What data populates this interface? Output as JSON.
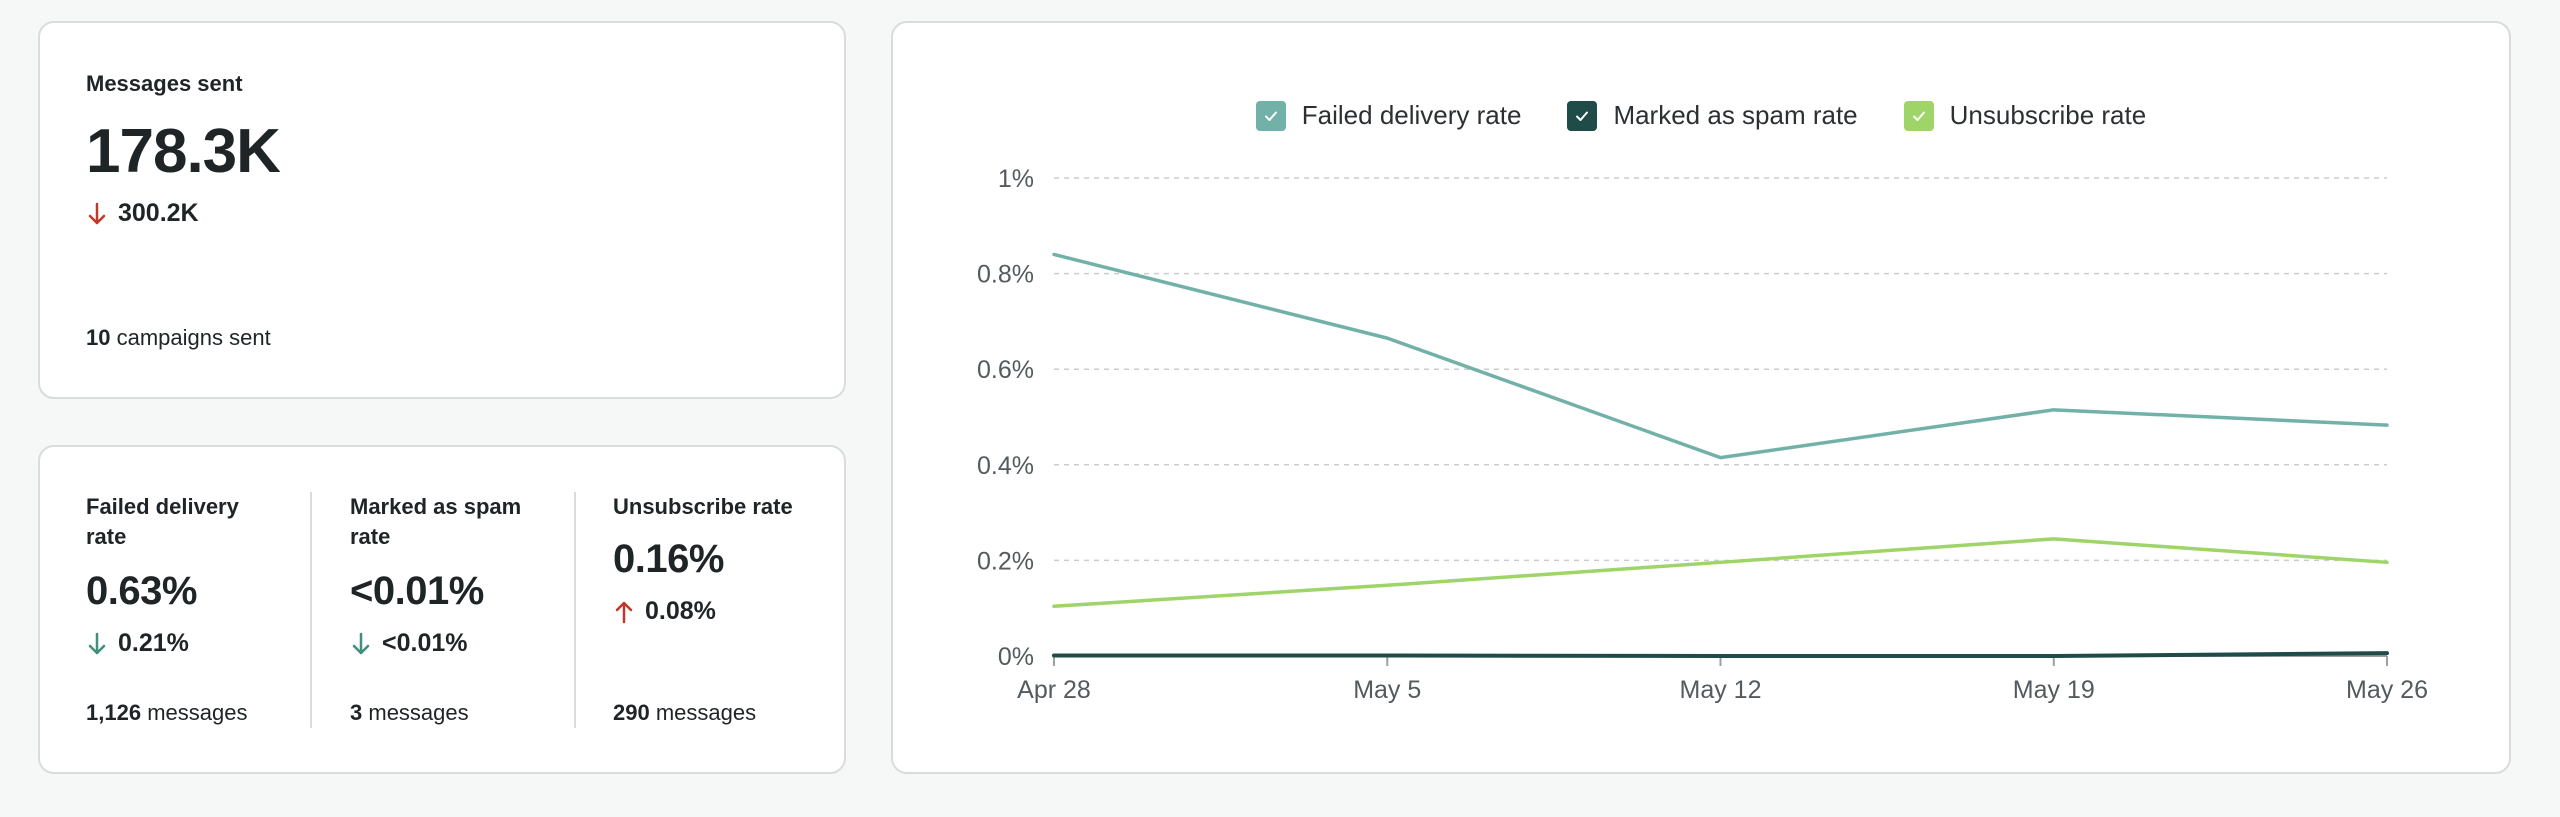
{
  "messages_sent": {
    "label": "Messages sent",
    "value": "178.3K",
    "delta": "300.2K",
    "delta_direction": "down",
    "campaigns_count": "10",
    "campaigns_label": "campaigns sent"
  },
  "metrics": [
    {
      "label": "Failed delivery rate",
      "value": "0.63%",
      "delta": "0.21%",
      "delta_direction": "down",
      "delta_color": "#3f8f7a",
      "messages_count": "1,126",
      "messages_label": "messages"
    },
    {
      "label": "Marked as spam rate",
      "value": "<0.01%",
      "delta": "<0.01%",
      "delta_direction": "down",
      "delta_color": "#3f8f7a",
      "messages_count": "3",
      "messages_label": "messages"
    },
    {
      "label": "Unsubscribe rate",
      "value": "0.16%",
      "delta": "0.08%",
      "delta_direction": "up",
      "delta_color": "#c0392b",
      "messages_count": "290",
      "messages_label": "messages"
    }
  ],
  "colors": {
    "down_red": "#c0392b",
    "failed": "#72b1a8",
    "spam": "#1f4b48",
    "unsub": "#9ed468"
  },
  "chart_data": {
    "type": "line",
    "categories": [
      "Apr 28",
      "May 5",
      "May 12",
      "May 19",
      "May 26"
    ],
    "yticks": [
      "0%",
      "0.2%",
      "0.4%",
      "0.6%",
      "0.8%",
      "1%"
    ],
    "ylim": [
      0,
      1
    ],
    "grid": true,
    "legend_position": "top",
    "series": [
      {
        "name": "Failed delivery rate",
        "color": "#72b1a8",
        "values": [
          0.84,
          0.665,
          0.415,
          0.515,
          0.483
        ]
      },
      {
        "name": "Marked as spam rate",
        "color": "#1f4b48",
        "values": [
          0.001,
          0.001,
          0.0,
          0.0,
          0.006
        ]
      },
      {
        "name": "Unsubscribe rate",
        "color": "#9ed468",
        "values": [
          0.104,
          0.148,
          0.196,
          0.245,
          0.196
        ]
      }
    ]
  }
}
